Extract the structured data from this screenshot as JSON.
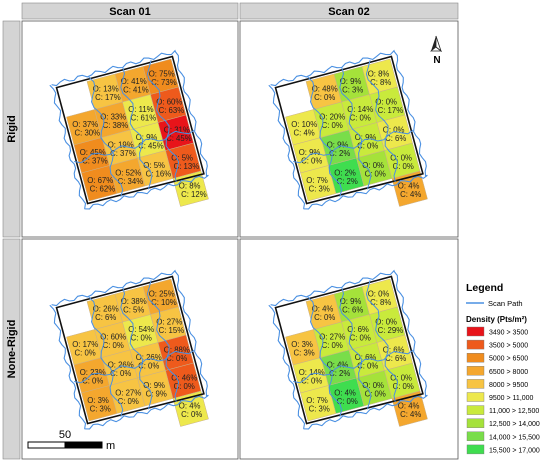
{
  "columns": [
    "Scan 01",
    "Scan 02"
  ],
  "rows": [
    "Rigid",
    "None-Rigid"
  ],
  "north_label": "N",
  "scale_bar": {
    "value": "50",
    "unit": "m"
  },
  "legend": {
    "title": "Legend",
    "scan_path_label": "Scan Path",
    "scan_path_color": "#4a90e2",
    "density_title": "Density (Pts/m²)",
    "classes": [
      {
        "label": "3490 > 3500",
        "color": "#e8141a"
      },
      {
        "label": "3500 > 5000",
        "color": "#ee5a1c"
      },
      {
        "label": "5000 > 6500",
        "color": "#f08c1e"
      },
      {
        "label": "6500 > 8000",
        "color": "#f4a72e"
      },
      {
        "label": "8000 > 9500",
        "color": "#f7c443"
      },
      {
        "label": "9500 > 11,000",
        "color": "#ede84c"
      },
      {
        "label": "11,000 > 12,500",
        "color": "#c9ea3c"
      },
      {
        "label": "12,500 > 14,000",
        "color": "#a5e23a"
      },
      {
        "label": "14,000 > 15,500",
        "color": "#79dd4a"
      },
      {
        "label": "15,500 > 17,000",
        "color": "#3fdd4f"
      }
    ]
  },
  "panels": [
    {
      "id": "rigid-scan01",
      "cells": [
        {
          "r": 0,
          "c": 1,
          "O": "13%",
          "C": "17%",
          "cls": 4
        },
        {
          "r": 0,
          "c": 2,
          "O": "41%",
          "C": "41%",
          "cls": 3
        },
        {
          "r": 0,
          "c": 3,
          "O": "75%",
          "C": "73%",
          "cls": 2
        },
        {
          "r": 1,
          "c": 0,
          "O": "37%",
          "C": "30%",
          "cls": 3
        },
        {
          "r": 1,
          "c": 1,
          "O": "33%",
          "C": "38%",
          "cls": 3
        },
        {
          "r": 1,
          "c": 2,
          "O": "11%",
          "C": "61%",
          "cls": 5
        },
        {
          "r": 1,
          "c": 3,
          "O": "60%",
          "C": "63%",
          "cls": 1
        },
        {
          "r": 2,
          "c": 0,
          "O": "45%",
          "C": "37%",
          "cls": 2
        },
        {
          "r": 2,
          "c": 1,
          "O": "19%",
          "C": "37%",
          "cls": 4
        },
        {
          "r": 2,
          "c": 2,
          "O": "9%",
          "C": "45%",
          "cls": 5
        },
        {
          "r": 2,
          "c": 3,
          "O": "31%",
          "C": "45%",
          "cls": 0
        },
        {
          "r": 3,
          "c": 0,
          "O": "67%",
          "C": "62%",
          "cls": 2
        },
        {
          "r": 3,
          "c": 1,
          "O": "52%",
          "C": "34%",
          "cls": 3
        },
        {
          "r": 3,
          "c": 2,
          "O": "5%",
          "C": "16%",
          "cls": 4
        },
        {
          "r": 3,
          "c": 3,
          "O": "5%",
          "C": "13%",
          "cls": 1
        },
        {
          "r": 4,
          "c": 3,
          "O": "8%",
          "C": "12%",
          "cls": 5
        }
      ]
    },
    {
      "id": "rigid-scan02",
      "cells": [
        {
          "r": 0,
          "c": 1,
          "O": "48%",
          "C": "0%",
          "cls": 4
        },
        {
          "r": 0,
          "c": 2,
          "O": "9%",
          "C": "3%",
          "cls": 7
        },
        {
          "r": 0,
          "c": 3,
          "O": "8%",
          "C": "8%",
          "cls": 5
        },
        {
          "r": 1,
          "c": 0,
          "O": "10%",
          "C": "4%",
          "cls": 5
        },
        {
          "r": 1,
          "c": 1,
          "O": "20%",
          "C": "0%",
          "cls": 6
        },
        {
          "r": 1,
          "c": 2,
          "O": "14%",
          "C": "0%",
          "cls": 6
        },
        {
          "r": 1,
          "c": 3,
          "O": "0%",
          "C": "17%",
          "cls": 6
        },
        {
          "r": 2,
          "c": 0,
          "O": "9%",
          "C": "0%",
          "cls": 5
        },
        {
          "r": 2,
          "c": 1,
          "O": "9%",
          "C": "2%",
          "cls": 8
        },
        {
          "r": 2,
          "c": 2,
          "O": "9%",
          "C": "0%",
          "cls": 6
        },
        {
          "r": 2,
          "c": 3,
          "O": "0%",
          "C": "6%",
          "cls": 5
        },
        {
          "r": 3,
          "c": 0,
          "O": "7%",
          "C": "3%",
          "cls": 5
        },
        {
          "r": 3,
          "c": 1,
          "O": "2%",
          "C": "2%",
          "cls": 9
        },
        {
          "r": 3,
          "c": 2,
          "O": "0%",
          "C": "0%",
          "cls": 7
        },
        {
          "r": 3,
          "c": 3,
          "O": "0%",
          "C": "0%",
          "cls": 6
        },
        {
          "r": 4,
          "c": 3,
          "O": "4%",
          "C": "4%",
          "cls": 3
        }
      ]
    },
    {
      "id": "nonrigid-scan01",
      "cells": [
        {
          "r": 0,
          "c": 1,
          "O": "26%",
          "C": "6%",
          "cls": 4
        },
        {
          "r": 0,
          "c": 2,
          "O": "38%",
          "C": "5%",
          "cls": 4
        },
        {
          "r": 0,
          "c": 3,
          "O": "25%",
          "C": "10%",
          "cls": 3
        },
        {
          "r": 1,
          "c": 0,
          "O": "17%",
          "C": "0%",
          "cls": 4
        },
        {
          "r": 1,
          "c": 1,
          "O": "60%",
          "C": "0%",
          "cls": 4
        },
        {
          "r": 1,
          "c": 2,
          "O": "54%",
          "C": "0%",
          "cls": 5
        },
        {
          "r": 1,
          "c": 3,
          "O": "27%",
          "C": "15%",
          "cls": 4
        },
        {
          "r": 2,
          "c": 0,
          "O": "23%",
          "C": "0%",
          "cls": 3
        },
        {
          "r": 2,
          "c": 1,
          "O": "26%",
          "C": "0%",
          "cls": 4
        },
        {
          "r": 2,
          "c": 2,
          "O": "26%",
          "C": "0%",
          "cls": 4
        },
        {
          "r": 2,
          "c": 3,
          "O": "88%",
          "C": "0%",
          "cls": 1
        },
        {
          "r": 3,
          "c": 0,
          "O": "3%",
          "C": "3%",
          "cls": 3
        },
        {
          "r": 3,
          "c": 1,
          "O": "27%",
          "C": "0%",
          "cls": 4
        },
        {
          "r": 3,
          "c": 2,
          "O": "9%",
          "C": "9%",
          "cls": 4
        },
        {
          "r": 3,
          "c": 3,
          "O": "46%",
          "C": "0%",
          "cls": 1
        },
        {
          "r": 4,
          "c": 3,
          "O": "4%",
          "C": "0%",
          "cls": 5
        }
      ]
    },
    {
      "id": "nonrigid-scan02",
      "cells": [
        {
          "r": 0,
          "c": 1,
          "O": "4%",
          "C": "0%",
          "cls": 4
        },
        {
          "r": 0,
          "c": 2,
          "O": "9%",
          "C": "6%",
          "cls": 7
        },
        {
          "r": 0,
          "c": 3,
          "O": "0%",
          "C": "8%",
          "cls": 5
        },
        {
          "r": 1,
          "c": 0,
          "O": "3%",
          "C": "3%",
          "cls": 4
        },
        {
          "r": 1,
          "c": 1,
          "O": "27%",
          "C": "0%",
          "cls": 6
        },
        {
          "r": 1,
          "c": 2,
          "O": "6%",
          "C": "0%",
          "cls": 6
        },
        {
          "r": 1,
          "c": 3,
          "O": "0%",
          "C": "29%",
          "cls": 6
        },
        {
          "r": 2,
          "c": 0,
          "O": "14%",
          "C": "0%",
          "cls": 5
        },
        {
          "r": 2,
          "c": 1,
          "O": "4%",
          "C": "2%",
          "cls": 8
        },
        {
          "r": 2,
          "c": 2,
          "O": "6%",
          "C": "0%",
          "cls": 6
        },
        {
          "r": 2,
          "c": 3,
          "O": "6%",
          "C": "6%",
          "cls": 5
        },
        {
          "r": 3,
          "c": 0,
          "O": "7%",
          "C": "3%",
          "cls": 5
        },
        {
          "r": 3,
          "c": 1,
          "O": "4%",
          "C": "0%",
          "cls": 9
        },
        {
          "r": 3,
          "c": 2,
          "O": "0%",
          "C": "0%",
          "cls": 7
        },
        {
          "r": 3,
          "c": 3,
          "O": "0%",
          "C": "0%",
          "cls": 6
        },
        {
          "r": 4,
          "c": 3,
          "O": "4%",
          "C": "4%",
          "cls": 3
        }
      ]
    }
  ]
}
